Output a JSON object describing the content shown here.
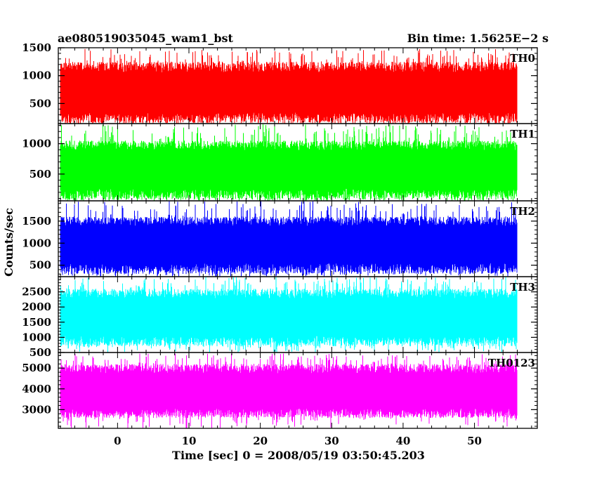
{
  "header": {
    "title": "ae080519035045_wam1_bst",
    "bin_time": "Bin time: 1.5625E−2 s"
  },
  "chart_data": {
    "type": "line",
    "title": "ae080519035045_wam1_bst",
    "xlabel": "Time [sec] 0 = 2008/05/19 03:50:45.203",
    "ylabel": "Counts/sec",
    "bin_time_s": 0.015625,
    "xlim": [
      -8.3,
      58.8
    ],
    "data_x_range": [
      -8.0,
      56.0
    ],
    "x_ticks": [
      0,
      10,
      20,
      30,
      40,
      50
    ],
    "grid": false,
    "legend": "none",
    "panels": [
      {
        "name": "TH0",
        "color": "#ff0000",
        "ylim": [
          140,
          1500
        ],
        "y_ticks": [
          500,
          1000,
          1500
        ],
        "mean": 700,
        "typical_low": 150,
        "typical_high": 1250,
        "max": 1480
      },
      {
        "name": "TH1",
        "color": "#00ff00",
        "ylim": [
          60,
          1330
        ],
        "y_ticks": [
          500,
          1000
        ],
        "mean": 600,
        "typical_low": 80,
        "typical_high": 1050,
        "max": 1320
      },
      {
        "name": "TH2",
        "color": "#0000ff",
        "ylim": [
          240,
          1960
        ],
        "y_ticks": [
          500,
          1000,
          1500
        ],
        "mean": 1000,
        "typical_low": 300,
        "typical_high": 1600,
        "max": 1950
      },
      {
        "name": "TH3",
        "color": "#00ffff",
        "ylim": [
          500,
          3000
        ],
        "y_ticks": [
          500,
          1000,
          1500,
          2000,
          2500
        ],
        "mean": 1700,
        "typical_low": 700,
        "typical_high": 2600,
        "max": 3000
      },
      {
        "name": "TH0123",
        "color": "#ff00ff",
        "ylim": [
          2100,
          5750
        ],
        "y_ticks": [
          3000,
          4000,
          5000
        ],
        "mean": 3900,
        "typical_low": 2600,
        "typical_high": 5200,
        "max": 5700
      }
    ]
  }
}
